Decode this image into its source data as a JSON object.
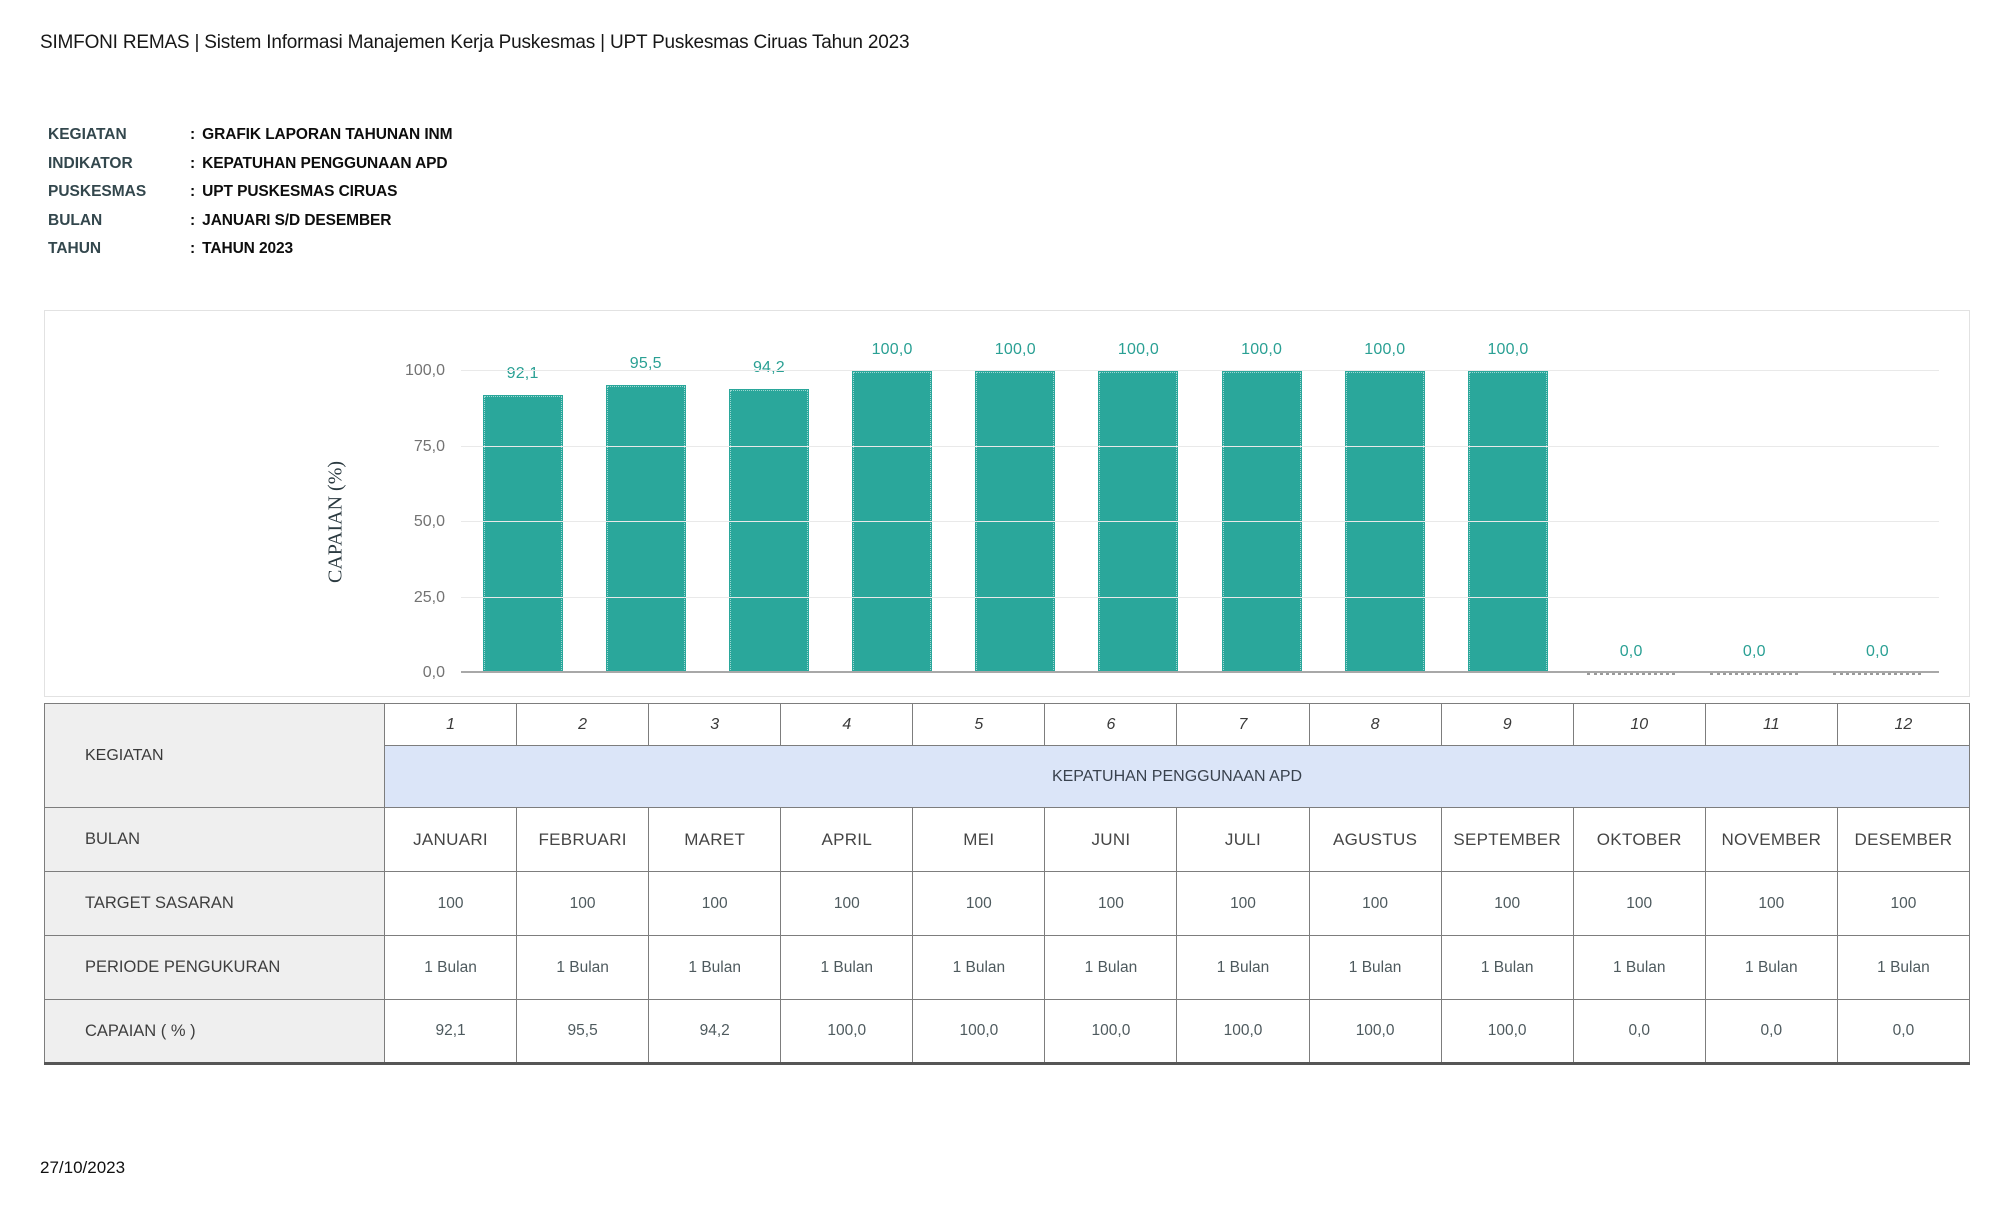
{
  "header": {
    "title": "SIMFONI REMAS | Sistem Informasi Manajemen Kerja Puskesmas | UPT Puskesmas Ciruas Tahun 2023"
  },
  "meta": {
    "separator": ":",
    "rows": [
      {
        "label": "KEGIATAN",
        "value": "GRAFIK LAPORAN TAHUNAN INM"
      },
      {
        "label": "INDIKATOR",
        "value": "KEPATUHAN PENGGUNAAN APD"
      },
      {
        "label": "PUSKESMAS",
        "value": "UPT PUSKESMAS CIRUAS"
      },
      {
        "label": "BULAN",
        "value": "JANUARI S/D DESEMBER"
      },
      {
        "label": "TAHUN",
        "value": "TAHUN 2023"
      }
    ]
  },
  "chart_data": {
    "type": "bar",
    "title": "",
    "xlabel": "",
    "ylabel": "CAPAIAN (%)",
    "categories": [
      "JANUARI",
      "FEBRUARI",
      "MARET",
      "APRIL",
      "MEI",
      "JUNI",
      "JULI",
      "AGUSTUS",
      "SEPTEMBER",
      "OKTOBER",
      "NOVEMBER",
      "DESEMBER"
    ],
    "values": [
      92.1,
      95.5,
      94.2,
      100,
      100,
      100,
      100,
      100,
      100,
      0,
      0,
      0
    ],
    "value_labels": [
      "92,1",
      "95,5",
      "94,2",
      "100,0",
      "100,0",
      "100,0",
      "100,0",
      "100,0",
      "100,0",
      "0,0",
      "0,0",
      "0,0"
    ],
    "ytick_values": [
      100,
      75,
      50,
      25,
      0
    ],
    "ytick_labels": [
      "100,0",
      "75,0",
      "50,0",
      "25,0",
      "0,0"
    ],
    "ylim": [
      0,
      100
    ],
    "grid": true,
    "legend": "none",
    "bar_color": "#2aa79b",
    "label_color": "#2aa094"
  },
  "table": {
    "corner_label": "KEGIATAN",
    "col_numbers": [
      "1",
      "2",
      "3",
      "4",
      "5",
      "6",
      "7",
      "8",
      "9",
      "10",
      "11",
      "12"
    ],
    "kegiatan_value": "KEPATUHAN PENGGUNAAN APD",
    "rows": [
      {
        "label": "BULAN",
        "cells": [
          "JANUARI",
          "FEBRUARI",
          "MARET",
          "APRIL",
          "MEI",
          "JUNI",
          "JULI",
          "AGUSTUS",
          "SEPTEMBER",
          "OKTOBER",
          "NOVEMBER",
          "DESEMBER"
        ]
      },
      {
        "label": "TARGET SASARAN",
        "cells": [
          "100",
          "100",
          "100",
          "100",
          "100",
          "100",
          "100",
          "100",
          "100",
          "100",
          "100",
          "100"
        ]
      },
      {
        "label": "PERIODE PENGUKURAN",
        "cells": [
          "1 Bulan",
          "1 Bulan",
          "1 Bulan",
          "1 Bulan",
          "1 Bulan",
          "1 Bulan",
          "1 Bulan",
          "1 Bulan",
          "1 Bulan",
          "1 Bulan",
          "1 Bulan",
          "1 Bulan"
        ]
      },
      {
        "label": "CAPAIAN ( % )",
        "cells": [
          "92,1",
          "95,5",
          "94,2",
          "100,0",
          "100,0",
          "100,0",
          "100,0",
          "100,0",
          "100,0",
          "0,0",
          "0,0",
          "0,0"
        ]
      }
    ]
  },
  "footer": {
    "date": "27/10/2023"
  }
}
